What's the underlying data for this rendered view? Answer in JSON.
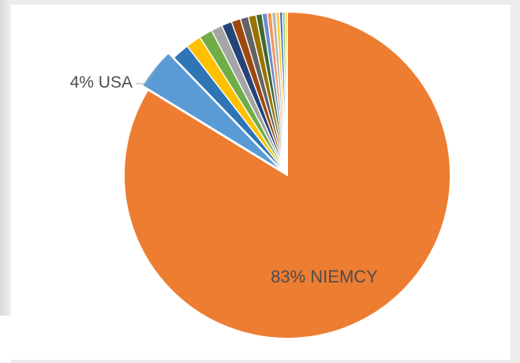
{
  "chart_data": {
    "type": "pie",
    "title": "",
    "slices": [
      {
        "label": "NIEMCY",
        "value": 83,
        "color": "#ED7D31",
        "data_label": "83% NIEMCY"
      },
      {
        "label": "USA",
        "value": 4,
        "color": "#5B9BD5",
        "data_label": "4% USA"
      },
      {
        "label": "",
        "value": 1.7,
        "color": "#2E75B6",
        "data_label": ""
      },
      {
        "label": "",
        "value": 1.5,
        "color": "#FFC000",
        "data_label": ""
      },
      {
        "label": "",
        "value": 1.3,
        "color": "#70AD47",
        "data_label": ""
      },
      {
        "label": "",
        "value": 1.1,
        "color": "#A5A5A5",
        "data_label": ""
      },
      {
        "label": "",
        "value": 1.0,
        "color": "#264478",
        "data_label": ""
      },
      {
        "label": "",
        "value": 0.9,
        "color": "#9E480E",
        "data_label": ""
      },
      {
        "label": "",
        "value": 0.8,
        "color": "#636363",
        "data_label": ""
      },
      {
        "label": "",
        "value": 0.75,
        "color": "#997300",
        "data_label": ""
      },
      {
        "label": "",
        "value": 0.6,
        "color": "#43682B",
        "data_label": ""
      },
      {
        "label": "",
        "value": 0.5,
        "color": "#698ED0",
        "data_label": ""
      },
      {
        "label": "",
        "value": 0.45,
        "color": "#F1975A",
        "data_label": ""
      },
      {
        "label": "",
        "value": 0.4,
        "color": "#B7B7B7",
        "data_label": ""
      },
      {
        "label": "",
        "value": 0.35,
        "color": "#FFCD33",
        "data_label": ""
      },
      {
        "label": "",
        "value": 0.3,
        "color": "#4472C4",
        "data_label": ""
      },
      {
        "label": "",
        "value": 0.25,
        "color": "#8CC168",
        "data_label": ""
      },
      {
        "label": "",
        "value": 0.2,
        "color": "#FFC000",
        "data_label": ""
      }
    ],
    "exploded": [
      "USA"
    ],
    "start_angle_deg": 0,
    "direction": "counterclockwise",
    "legend": "none"
  }
}
